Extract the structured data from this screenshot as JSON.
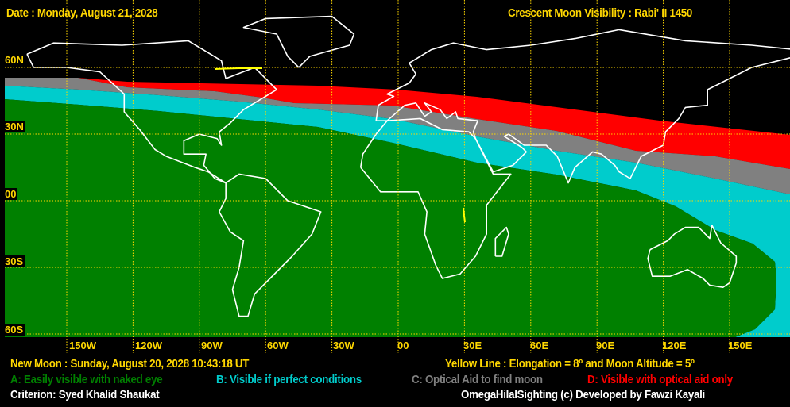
{
  "header": {
    "date": "Date : Monday, August 21, 2028",
    "title": "Crescent Moon Visibility : Rabi' II  1450"
  },
  "map": {
    "lat_labels": [
      "60N",
      "30N",
      "00",
      "30S",
      "60S"
    ],
    "lon_labels": [
      "150W",
      "120W",
      "90W",
      "60W",
      "30W",
      "00",
      "30E",
      "60E",
      "90E",
      "120E",
      "150E"
    ],
    "zone_colors": {
      "A": "#008000",
      "B": "#00cccc",
      "C": "#808080",
      "D": "#ff0000"
    }
  },
  "footer": {
    "new_moon": "New Moon : Sunday, August 20, 2028  10:43:18  UT",
    "yellow_line": "Yellow Line : Elongation = 8º  and Moon Altitude = 5º",
    "legend": {
      "a": "A: Easily visible with naked eye",
      "b": "B: Visible if perfect conditions",
      "c": "C: Optical Aid to find moon",
      "d": "D: Visible with optical aid only"
    },
    "criterion": "Criterion: Syed Khalid Shaukat",
    "credit": "OmegaHilalSighting  (c)  Developed by Fawzi Kayali"
  }
}
